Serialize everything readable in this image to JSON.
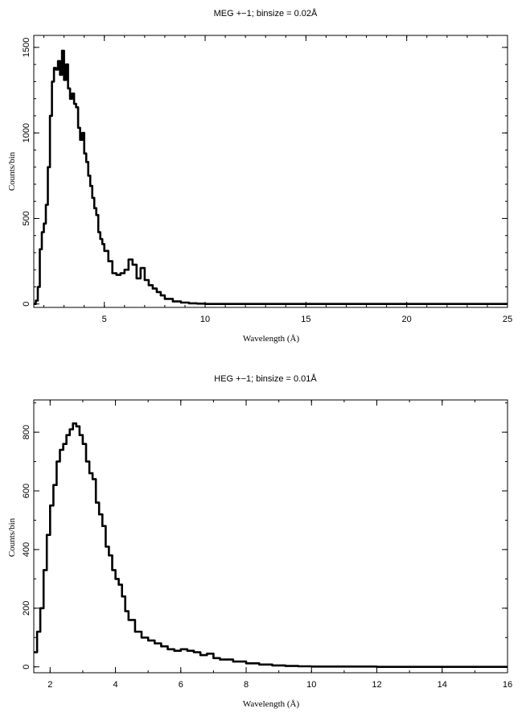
{
  "chart_data": [
    {
      "type": "line",
      "title": "MEG +−1; binsize = 0.02Å",
      "xlabel": "Wavelength (Å)",
      "ylabel": "Counts/bin",
      "xlim": [
        1.5,
        25
      ],
      "ylim": [
        -20,
        1570
      ],
      "xticks": [
        5,
        10,
        15,
        20,
        25
      ],
      "yticks": [
        0,
        500,
        1000,
        1500
      ],
      "grid": false,
      "series": [
        {
          "x": [
            1.5,
            1.6,
            1.7,
            1.8,
            1.9,
            2.0,
            2.1,
            2.2,
            2.3,
            2.4,
            2.5,
            2.6,
            2.7,
            2.8,
            2.9,
            3.0,
            3.1,
            3.2,
            3.3,
            3.4,
            3.5,
            3.6,
            3.7,
            3.8,
            3.9,
            4.0,
            4.1,
            4.2,
            4.3,
            4.4,
            4.5,
            4.6,
            4.7,
            4.8,
            4.9,
            5.0,
            5.2,
            5.4,
            5.6,
            5.8,
            6.0,
            6.2,
            6.4,
            6.6,
            6.8,
            7.0,
            7.2,
            7.4,
            7.6,
            7.8,
            8.0,
            8.4,
            8.8,
            9.2,
            9.6,
            10.0,
            12.0,
            15.0,
            20.0,
            25.0
          ],
          "y": [
            0,
            20,
            100,
            320,
            420,
            470,
            580,
            800,
            1100,
            1300,
            1380,
            1370,
            1420,
            1340,
            1480,
            1310,
            1400,
            1260,
            1200,
            1230,
            1170,
            1150,
            1030,
            960,
            1000,
            880,
            830,
            750,
            690,
            620,
            560,
            520,
            420,
            380,
            350,
            310,
            250,
            180,
            170,
            180,
            200,
            260,
            230,
            150,
            210,
            140,
            110,
            90,
            70,
            50,
            30,
            15,
            8,
            4,
            2,
            0,
            0,
            0,
            0,
            0
          ]
        }
      ]
    },
    {
      "type": "line",
      "title": "HEG +−1; binsize = 0.01Å",
      "xlabel": "Wavelength (Å)",
      "ylabel": "Counts/bin",
      "xlim": [
        1.5,
        16
      ],
      "ylim": [
        -20,
        910
      ],
      "xticks": [
        2,
        4,
        6,
        8,
        10,
        12,
        14,
        16
      ],
      "yticks": [
        0,
        200,
        400,
        600,
        800
      ],
      "grid": false,
      "series": [
        {
          "x": [
            1.5,
            1.6,
            1.7,
            1.8,
            1.9,
            2.0,
            2.1,
            2.2,
            2.3,
            2.4,
            2.5,
            2.6,
            2.7,
            2.8,
            2.9,
            3.0,
            3.1,
            3.2,
            3.3,
            3.4,
            3.5,
            3.6,
            3.7,
            3.8,
            3.9,
            4.0,
            4.1,
            4.2,
            4.3,
            4.4,
            4.6,
            4.8,
            5.0,
            5.2,
            5.4,
            5.6,
            5.8,
            6.0,
            6.2,
            6.4,
            6.6,
            6.8,
            7.0,
            7.2,
            7.6,
            8.0,
            8.4,
            8.8,
            9.2,
            9.6,
            10.0,
            12.0,
            14.0,
            16.0
          ],
          "y": [
            50,
            120,
            200,
            330,
            450,
            550,
            620,
            700,
            740,
            760,
            790,
            810,
            830,
            820,
            790,
            760,
            700,
            660,
            640,
            560,
            520,
            480,
            410,
            380,
            330,
            300,
            280,
            240,
            190,
            160,
            120,
            100,
            90,
            80,
            70,
            60,
            55,
            60,
            55,
            50,
            40,
            45,
            30,
            25,
            18,
            12,
            8,
            5,
            3,
            2,
            1,
            0,
            0,
            0
          ]
        }
      ]
    }
  ]
}
